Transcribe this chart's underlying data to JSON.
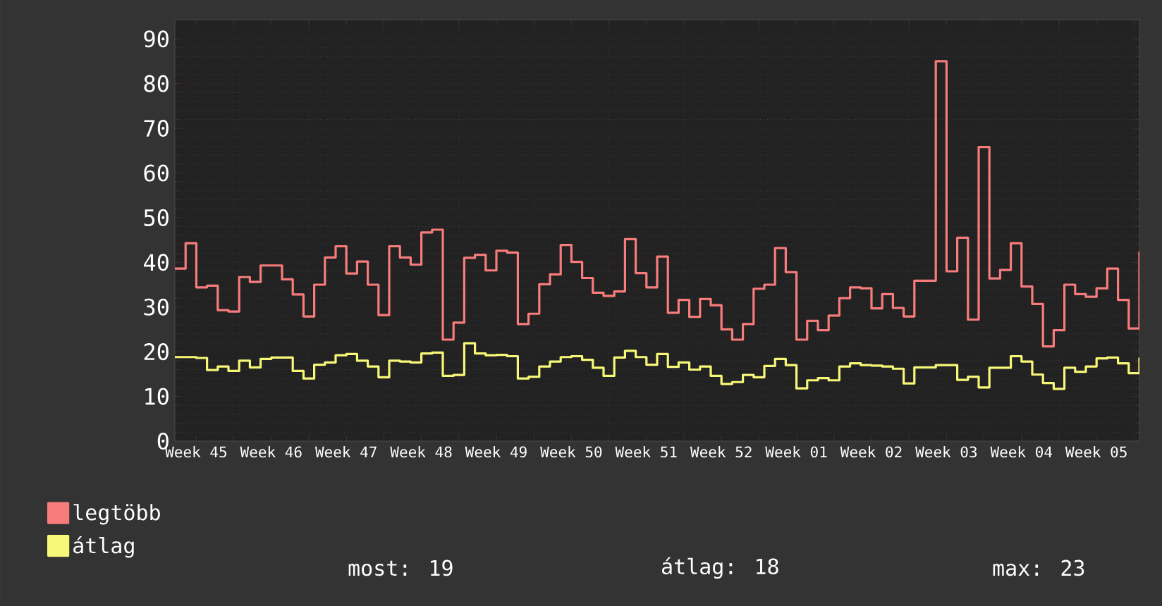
{
  "chart_data": {
    "type": "step",
    "categories": [
      null,
      null,
      "Week 45",
      null,
      null,
      null,
      null,
      null,
      null,
      "Week 46",
      null,
      null,
      null,
      null,
      null,
      null,
      "Week 47",
      null,
      null,
      null,
      null,
      null,
      null,
      "Week 48",
      null,
      null,
      null,
      null,
      null,
      null,
      "Week 49",
      null,
      null,
      null,
      null,
      null,
      null,
      "Week 50",
      null,
      null,
      null,
      null,
      null,
      null,
      "Week 51",
      null,
      null,
      null,
      null,
      null,
      null,
      "Week 52",
      null,
      null,
      null,
      null,
      null,
      null,
      "Week 01",
      null,
      null,
      null,
      null,
      null,
      null,
      "Week 02",
      null,
      null,
      null,
      null,
      null,
      null,
      "Week 03",
      null,
      null,
      null,
      null,
      null,
      null,
      "Week 04",
      null,
      null,
      null,
      null,
      null,
      null,
      "Week 05",
      null,
      null,
      null,
      null
    ],
    "series": [
      {
        "name": "legtöbb",
        "color": "#f87c7c",
        "values": [
          38.6,
          44.3,
          34.4,
          34.8,
          29.3,
          29,
          36.7,
          35.6,
          39.3,
          39.3,
          36.2,
          32.8,
          27.9,
          35,
          41.1,
          43.6,
          37.5,
          40.2,
          35,
          28.2,
          43.6,
          41.1,
          39.5,
          46.7,
          47.3,
          22.7,
          26.5,
          41,
          41.7,
          38.2,
          42.6,
          42.2,
          26.2,
          28.5,
          35.1,
          37.3,
          43.9,
          40.1,
          36.5,
          33.2,
          32.5,
          33.5,
          45.2,
          37.6,
          34.4,
          41.3,
          28.7,
          31.6,
          27.8,
          31.8,
          30.4,
          25,
          22.7,
          26.2,
          34.1,
          35,
          43.2,
          37.8,
          22.7,
          26.9,
          24.8,
          28.1,
          32,
          34.4,
          34.2,
          29.7,
          32.9,
          29.8,
          27.9,
          35.9,
          35.9,
          85,
          38,
          45.5,
          27.2,
          65.8,
          36.4,
          38.3,
          44.3,
          34.6,
          30.7,
          21.2,
          24.8,
          35,
          32.9,
          32.3,
          34.2,
          38.6,
          31.6,
          25.2,
          42.4
        ]
      },
      {
        "name": "átlag",
        "color": "#f8f878",
        "values": [
          18.8,
          18.8,
          18.6,
          15.9,
          16.7,
          15.7,
          18,
          16.5,
          18.4,
          18.7,
          18.7,
          15.7,
          14,
          17.1,
          17.6,
          19.2,
          19.5,
          18,
          16.7,
          14.3,
          18,
          17.8,
          17.6,
          19.6,
          19.8,
          14.6,
          14.8,
          21.9,
          19.6,
          19.2,
          19.3,
          19,
          14,
          14.4,
          16.7,
          17.8,
          18.8,
          19,
          18.2,
          16.4,
          14.6,
          18.7,
          20.2,
          18.8,
          17.1,
          19.5,
          16.6,
          17.6,
          16,
          16.7,
          14.6,
          12.8,
          13.2,
          14.8,
          14.3,
          16.8,
          18.4,
          17,
          11.8,
          13.6,
          14.1,
          13.6,
          16.7,
          17.4,
          17,
          16.9,
          16.7,
          16.2,
          12.9,
          16.5,
          16.5,
          17,
          17,
          13.7,
          14.4,
          12,
          16.4,
          16.4,
          19,
          17.8,
          14.9,
          13,
          11.7,
          16.4,
          15.5,
          16.7,
          18.5,
          18.7,
          17.4,
          15.2,
          18.7
        ]
      }
    ],
    "ylim": [
      0,
      94.3
    ],
    "yticks": [
      0,
      10,
      20,
      30,
      40,
      50,
      60,
      70,
      80,
      90
    ],
    "grid": true,
    "legend": "bottom left",
    "annotations": [
      "most: 19",
      "átlag: 18",
      "max: 23"
    ]
  }
}
